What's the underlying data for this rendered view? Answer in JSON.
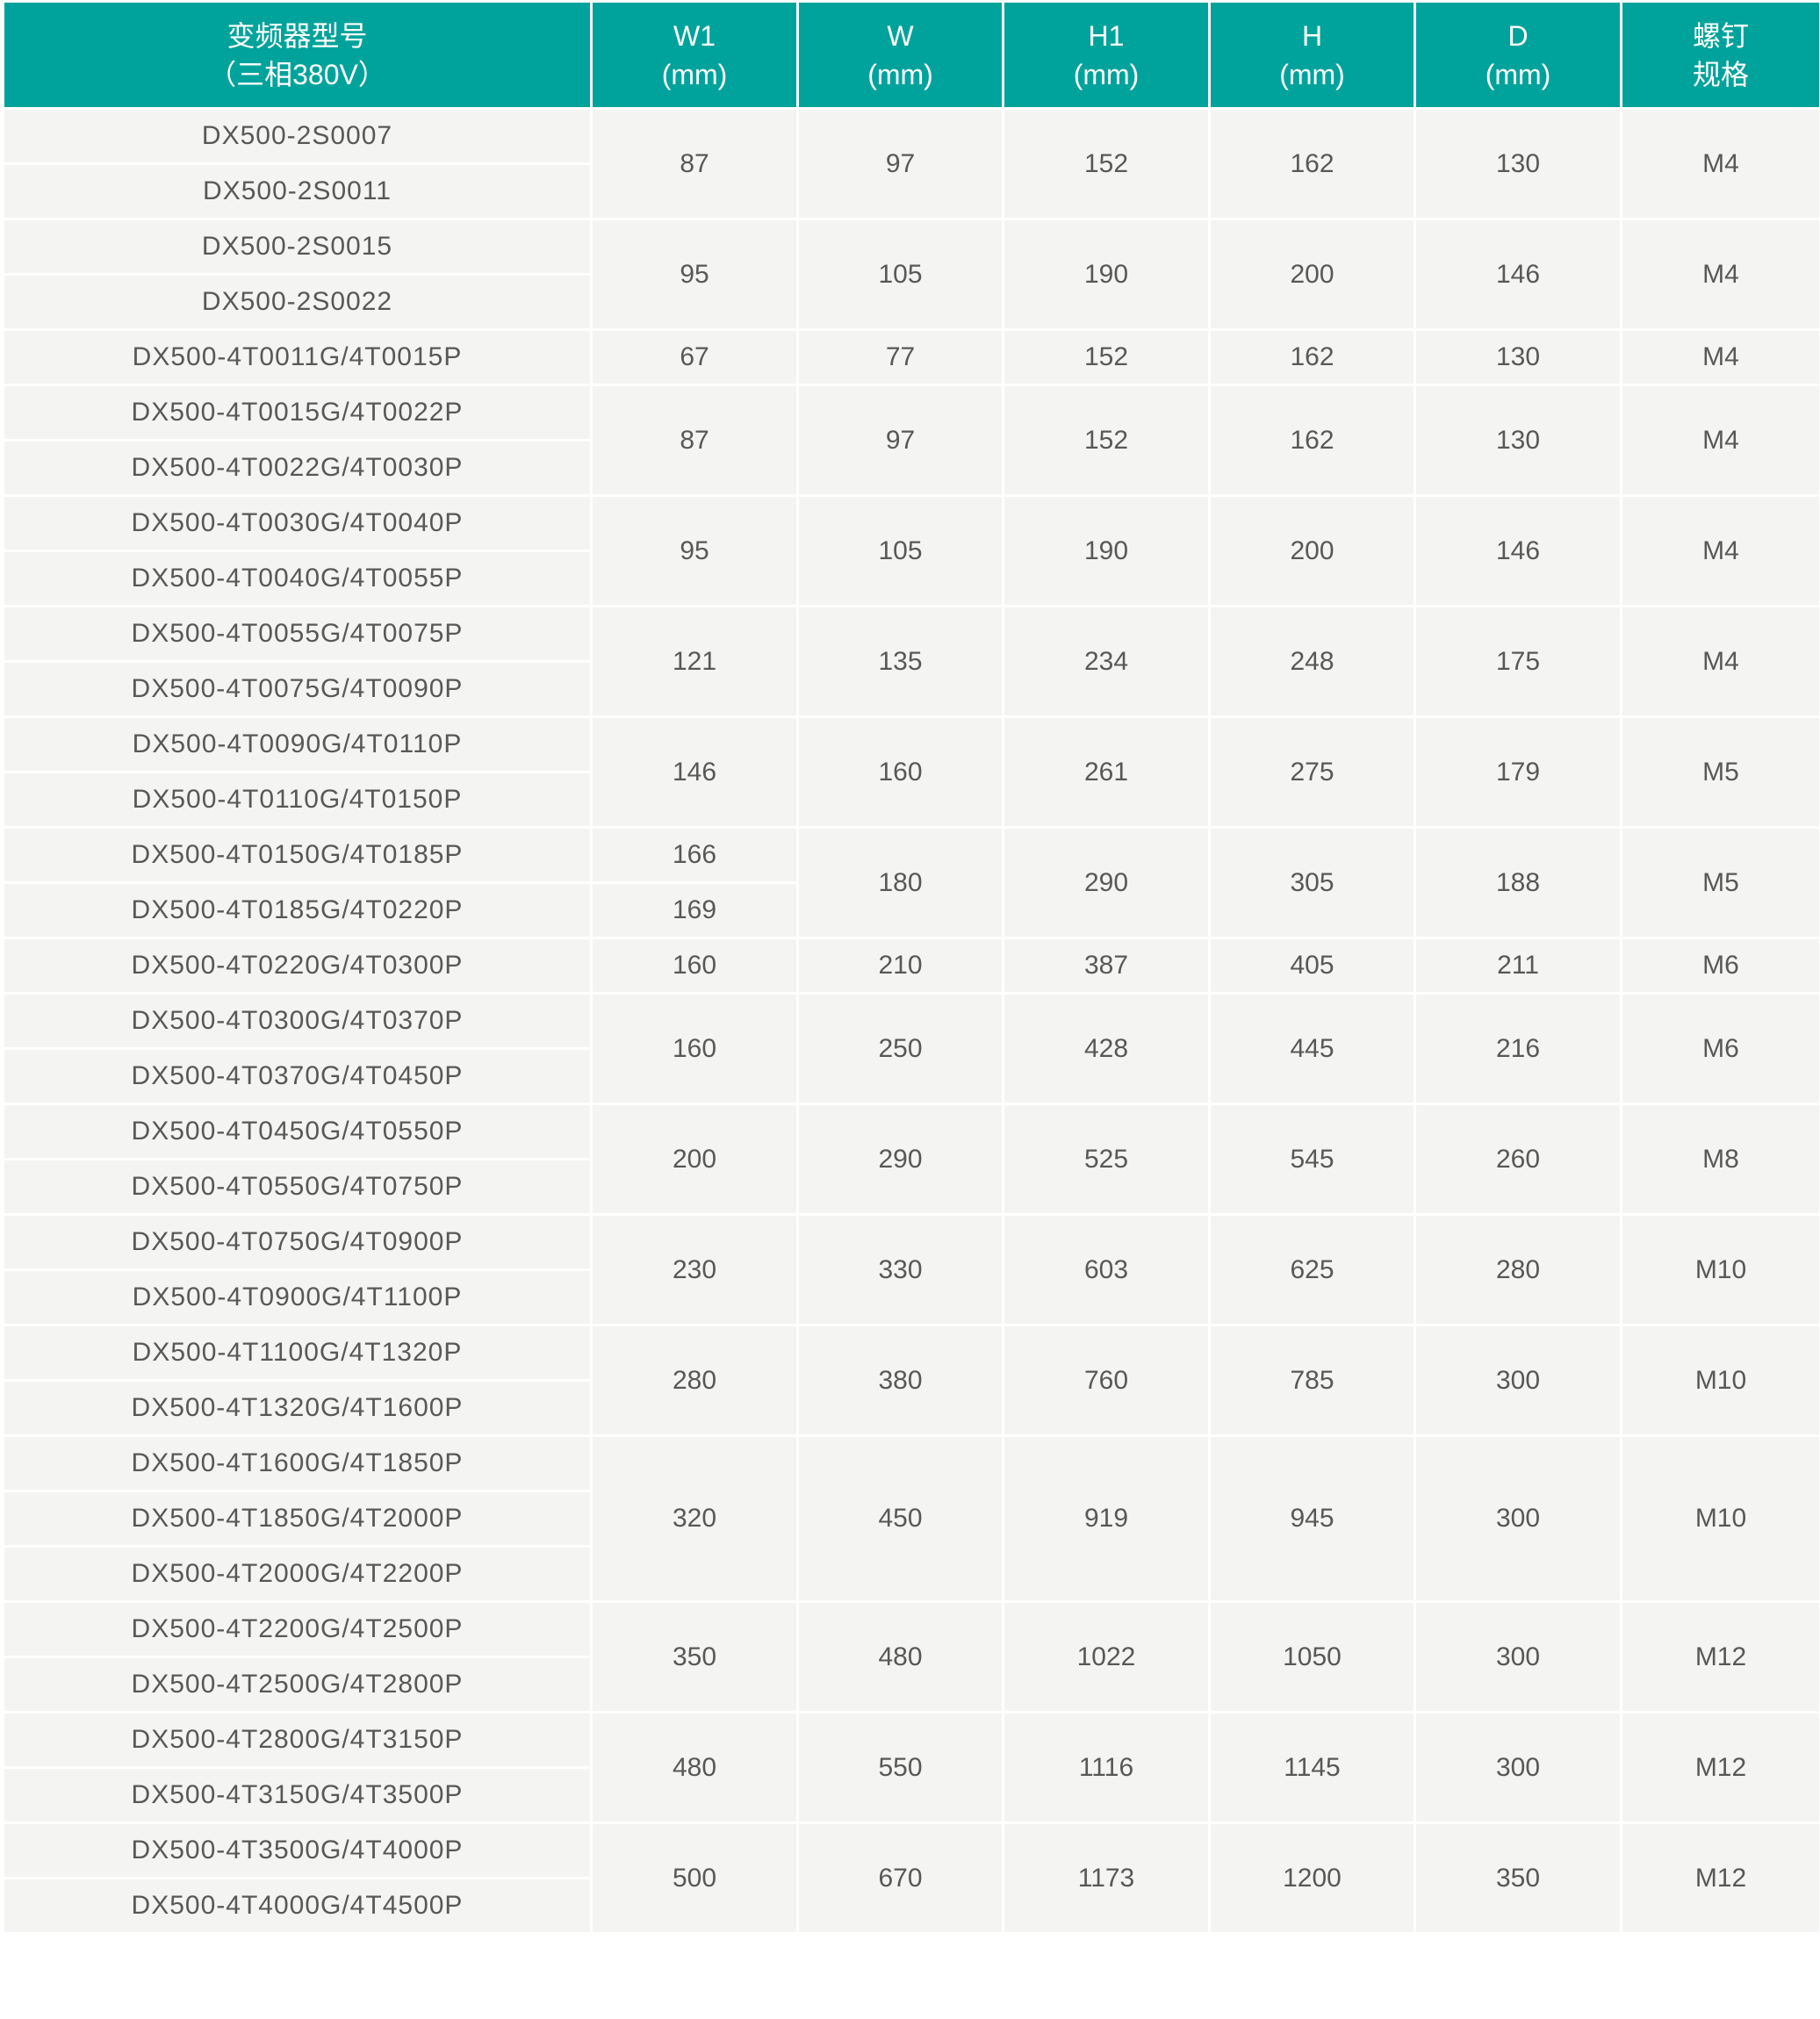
{
  "colors": {
    "header_bg": "#00a39b",
    "header_text": "#ffffff",
    "body_bg": "#f4f4f2",
    "body_text": "#585858"
  },
  "headers": [
    {
      "line1": "变频器型号",
      "line2": "（三相380V）"
    },
    {
      "line1": "W1",
      "line2": "(mm)"
    },
    {
      "line1": "W",
      "line2": "(mm)"
    },
    {
      "line1": "H1",
      "line2": "(mm)"
    },
    {
      "line1": "H",
      "line2": "(mm)"
    },
    {
      "line1": "D",
      "line2": "(mm)"
    },
    {
      "line1": "螺钉",
      "line2": "规格"
    }
  ],
  "groups": [
    {
      "models": [
        "DX500-2S0007",
        "DX500-2S0011"
      ],
      "w1": "87",
      "w": "97",
      "h1": "152",
      "h": "162",
      "d": "130",
      "screw": "M4"
    },
    {
      "models": [
        "DX500-2S0015",
        "DX500-2S0022"
      ],
      "w1": "95",
      "w": "105",
      "h1": "190",
      "h": "200",
      "d": "146",
      "screw": "M4"
    },
    {
      "models": [
        "DX500-4T0011G/4T0015P"
      ],
      "w1": "67",
      "w": "77",
      "h1": "152",
      "h": "162",
      "d": "130",
      "screw": "M4"
    },
    {
      "models": [
        "DX500-4T0015G/4T0022P",
        "DX500-4T0022G/4T0030P"
      ],
      "w1": "87",
      "w": "97",
      "h1": "152",
      "h": "162",
      "d": "130",
      "screw": "M4"
    },
    {
      "models": [
        "DX500-4T0030G/4T0040P",
        "DX500-4T0040G/4T0055P"
      ],
      "w1": "95",
      "w": "105",
      "h1": "190",
      "h": "200",
      "d": "146",
      "screw": "M4"
    },
    {
      "models": [
        "DX500-4T0055G/4T0075P",
        "DX500-4T0075G/4T0090P"
      ],
      "w1": "121",
      "w": "135",
      "h1": "234",
      "h": "248",
      "d": "175",
      "screw": "M4"
    },
    {
      "models": [
        "DX500-4T0090G/4T0110P",
        "DX500-4T0110G/4T0150P"
      ],
      "w1": "146",
      "w": "160",
      "h1": "261",
      "h": "275",
      "d": "179",
      "screw": "M5"
    },
    {
      "models": [
        "DX500-4T0150G/4T0185P",
        "DX500-4T0185G/4T0220P"
      ],
      "w1": [
        "166",
        "169"
      ],
      "w": "180",
      "h1": "290",
      "h": "305",
      "d": "188",
      "screw": "M5"
    },
    {
      "models": [
        "DX500-4T0220G/4T0300P"
      ],
      "w1": "160",
      "w": "210",
      "h1": "387",
      "h": "405",
      "d": "211",
      "screw": "M6"
    },
    {
      "models": [
        "DX500-4T0300G/4T0370P",
        "DX500-4T0370G/4T0450P"
      ],
      "w1": "160",
      "w": "250",
      "h1": "428",
      "h": "445",
      "d": "216",
      "screw": "M6"
    },
    {
      "models": [
        "DX500-4T0450G/4T0550P",
        "DX500-4T0550G/4T0750P"
      ],
      "w1": "200",
      "w": "290",
      "h1": "525",
      "h": "545",
      "d": "260",
      "screw": "M8"
    },
    {
      "models": [
        "DX500-4T0750G/4T0900P",
        "DX500-4T0900G/4T1100P"
      ],
      "w1": "230",
      "w": "330",
      "h1": "603",
      "h": "625",
      "d": "280",
      "screw": "M10"
    },
    {
      "models": [
        "DX500-4T1100G/4T1320P",
        "DX500-4T1320G/4T1600P"
      ],
      "w1": "280",
      "w": "380",
      "h1": "760",
      "h": "785",
      "d": "300",
      "screw": "M10"
    },
    {
      "models": [
        "DX500-4T1600G/4T1850P",
        "DX500-4T1850G/4T2000P",
        "DX500-4T2000G/4T2200P"
      ],
      "w1": "320",
      "w": "450",
      "h1": "919",
      "h": "945",
      "d": "300",
      "screw": "M10"
    },
    {
      "models": [
        "DX500-4T2200G/4T2500P",
        "DX500-4T2500G/4T2800P"
      ],
      "w1": "350",
      "w": "480",
      "h1": "1022",
      "h": "1050",
      "d": "300",
      "screw": "M12"
    },
    {
      "models": [
        "DX500-4T2800G/4T3150P",
        "DX500-4T3150G/4T3500P"
      ],
      "w1": "480",
      "w": "550",
      "h1": "1116",
      "h": "1145",
      "d": "300",
      "screw": "M12"
    },
    {
      "models": [
        "DX500-4T3500G/4T4000P",
        "DX500-4T4000G/4T4500P"
      ],
      "w1": "500",
      "w": "670",
      "h1": "1173",
      "h": "1200",
      "d": "350",
      "screw": "M12"
    }
  ]
}
